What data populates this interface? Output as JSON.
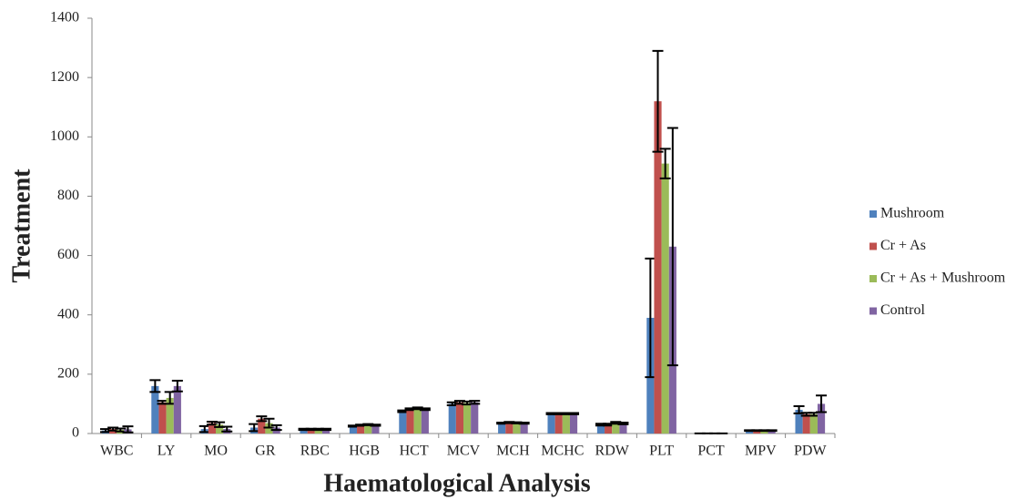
{
  "chart_data": {
    "type": "bar",
    "x_label": "Haematological Analysis",
    "y_label": "Treatment",
    "categories": [
      "WBC",
      "LY",
      "MO",
      "GR",
      "RBC",
      "HGB",
      "HCT",
      "MCV",
      "MCH",
      "MCHC",
      "RDW",
      "PLT",
      "PCT",
      "MPV",
      "PDW"
    ],
    "series": [
      {
        "name": "Mushroom",
        "color": "#4f81bd",
        "values": [
          10,
          160,
          15,
          20,
          14,
          25,
          75,
          100,
          35,
          67,
          30,
          390,
          0.5,
          10,
          80
        ],
        "errors": [
          5,
          20,
          10,
          12,
          2,
          2,
          3,
          5,
          2,
          2,
          3,
          200,
          0,
          1,
          12
        ]
      },
      {
        "name": "Cr + As",
        "color": "#c0504d",
        "values": [
          15,
          105,
          35,
          50,
          14,
          28,
          82,
          105,
          37,
          67,
          30,
          1120,
          0.5,
          10,
          65
        ],
        "errors": [
          5,
          5,
          5,
          8,
          2,
          2,
          3,
          5,
          2,
          2,
          3,
          170,
          0,
          1,
          5
        ]
      },
      {
        "name": "Cr + As + Mushroom",
        "color": "#9bbb59",
        "values": [
          12,
          120,
          30,
          35,
          14,
          30,
          85,
          103,
          36,
          67,
          36,
          910,
          0.5,
          10,
          65
        ],
        "errors": [
          5,
          20,
          8,
          15,
          2,
          2,
          3,
          5,
          2,
          2,
          3,
          50,
          0,
          1,
          5
        ]
      },
      {
        "name": "Control",
        "color": "#8064a2",
        "values": [
          14,
          160,
          15,
          20,
          14,
          28,
          82,
          105,
          35,
          67,
          34,
          630,
          0.5,
          10,
          100
        ],
        "errors": [
          10,
          18,
          8,
          8,
          2,
          2,
          3,
          5,
          2,
          2,
          3,
          400,
          0,
          1,
          28
        ]
      }
    ],
    "ylim": [
      0,
      1400
    ],
    "yticks": [
      0,
      200,
      400,
      600,
      800,
      1000,
      1200,
      1400
    ],
    "legend": "right"
  }
}
